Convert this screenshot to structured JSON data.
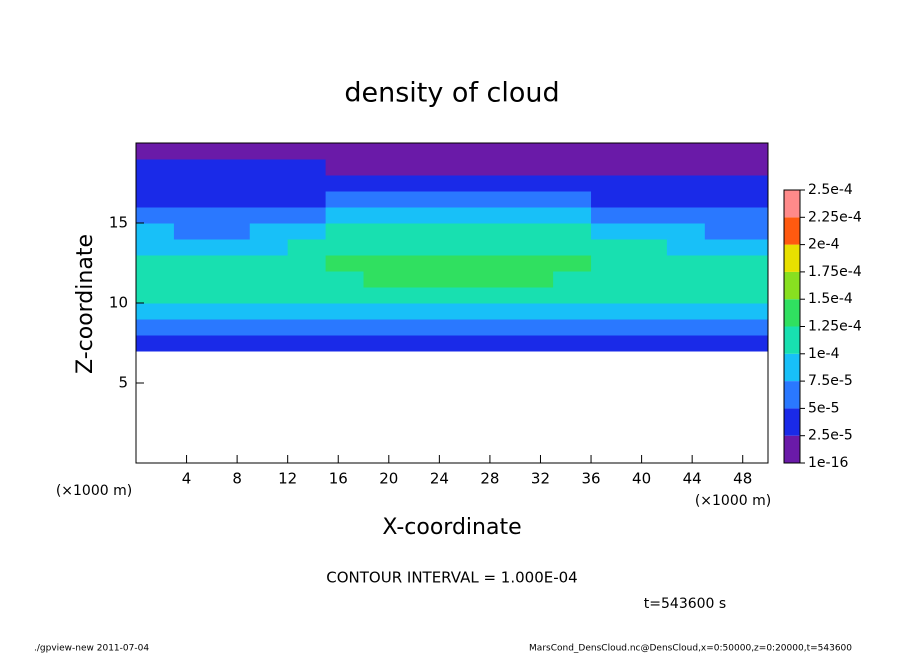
{
  "chart_data": {
    "type": "heatmap",
    "title": "density of cloud",
    "xlabel": "X-coordinate",
    "ylabel": "Z-coordinate",
    "x_unit": "(×1000 m)",
    "annotations": [
      "CONTOUR INTERVAL = 1.000E-04",
      "t=543600 s"
    ],
    "footer_left": "./gpview-new  2011-07-04",
    "footer_right": "MarsCond_DensCloud.nc@DensCloud,x=0:50000,z=0:20000,t=543600",
    "xlim": [
      0,
      50
    ],
    "ylim": [
      0,
      20
    ],
    "xticks": [
      4,
      8,
      12,
      16,
      20,
      24,
      28,
      32,
      36,
      40,
      44,
      48
    ],
    "yticks": [
      5,
      10,
      15
    ],
    "x": [
      1.5,
      4.5,
      7.5,
      10.5,
      13.5,
      16.5,
      19.5,
      22.5,
      25.5,
      28.5,
      31.5,
      34.5,
      37.5,
      40.5,
      43.5,
      46.5,
      49.5
    ],
    "y": [
      7.5,
      8.5,
      9.5,
      10.5,
      11.5,
      12.5,
      13.5,
      14.5,
      15.5,
      16.5,
      17.5,
      18.5,
      19.5
    ],
    "values": [
      [
        3.5e-05,
        3.5e-05,
        3.5e-05,
        3.5e-05,
        3.5e-05,
        3.5e-05,
        3.5e-05,
        3.5e-05,
        3.5e-05,
        3.5e-05,
        3.5e-05,
        3.5e-05,
        3.5e-05,
        3.5e-05,
        3.5e-05,
        3.5e-05,
        3.5e-05
      ],
      [
        6e-05,
        6e-05,
        6e-05,
        6e-05,
        6e-05,
        6e-05,
        6e-05,
        6e-05,
        6e-05,
        6e-05,
        6e-05,
        6e-05,
        6e-05,
        6e-05,
        6e-05,
        6e-05,
        6e-05
      ],
      [
        8e-05,
        8e-05,
        8e-05,
        8e-05,
        8e-05,
        8e-05,
        8e-05,
        8e-05,
        8e-05,
        8e-05,
        8e-05,
        8e-05,
        8e-05,
        8e-05,
        8e-05,
        8e-05,
        8e-05
      ],
      [
        0.0001,
        0.0001,
        0.0001,
        0.0001,
        0.000105,
        0.00011,
        0.00011,
        0.00011,
        0.00011,
        0.00011,
        0.00011,
        0.000105,
        0.000105,
        0.000105,
        0.0001,
        0.0001,
        0.0001
      ],
      [
        0.000105,
        0.000105,
        0.000105,
        0.00011,
        0.000115,
        0.00012,
        0.000125,
        0.000125,
        0.000125,
        0.000125,
        0.000125,
        0.00012,
        0.00012,
        0.000115,
        0.000115,
        0.00011,
        0.00011
      ],
      [
        0.000105,
        0.0001,
        0.0001,
        0.000105,
        0.000115,
        0.000125,
        0.00013,
        0.00013,
        0.00013,
        0.00013,
        0.000125,
        0.000125,
        0.00012,
        0.000115,
        0.00011,
        0.00011,
        0.000105
      ],
      [
        9.5e-05,
        9e-05,
        8.5e-05,
        9.5e-05,
        0.000105,
        0.00012,
        0.00012,
        0.00012,
        0.00012,
        0.00012,
        0.00012,
        0.000115,
        0.00011,
        0.0001,
        9.5e-05,
        9e-05,
        9e-05
      ],
      [
        7.5e-05,
        7e-05,
        7e-05,
        8e-05,
        9e-05,
        0.000105,
        0.00011,
        0.00011,
        0.00011,
        0.00011,
        0.000105,
        0.0001,
        9e-05,
        8e-05,
        7.5e-05,
        7e-05,
        7e-05
      ],
      [
        6e-05,
        5.5e-05,
        5e-05,
        5.5e-05,
        6.5e-05,
        8e-05,
        8.5e-05,
        8.5e-05,
        8.5e-05,
        8.5e-05,
        8e-05,
        7.5e-05,
        7e-05,
        6e-05,
        5.5e-05,
        5.5e-05,
        5.5e-05
      ],
      [
        4e-05,
        4e-05,
        4e-05,
        4e-05,
        4.5e-05,
        5.5e-05,
        5.5e-05,
        5.5e-05,
        5.5e-05,
        5.5e-05,
        5e-05,
        5e-05,
        4.5e-05,
        4e-05,
        4e-05,
        4e-05,
        4e-05
      ],
      [
        3.5e-05,
        3.5e-05,
        3.5e-05,
        3.5e-05,
        3e-05,
        3e-05,
        3e-05,
        3e-05,
        3e-05,
        3e-05,
        3e-05,
        3e-05,
        3e-05,
        2.5e-05,
        2.5e-05,
        2.5e-05,
        2.5e-05
      ],
      [
        3e-05,
        3e-05,
        3e-05,
        2.5e-05,
        2.5e-05,
        2e-05,
        2e-05,
        2e-05,
        2e-05,
        1.5e-05,
        1.5e-05,
        2e-05,
        2e-05,
        2e-05,
        2e-05,
        2e-05,
        2e-05
      ],
      [
        2e-05,
        2e-05,
        2e-05,
        2e-05,
        1.5e-05,
        1e-05,
        1e-05,
        1e-05,
        1e-05,
        1e-05,
        1e-05,
        1e-05,
        1e-05,
        1e-05,
        1e-05,
        1e-05,
        1e-05
      ]
    ],
    "colorbar": {
      "ticks": [
        1e-16,
        {
          "value": 2.5e-05,
          "label": "2.5e-5"
        },
        {
          "value": 5e-05,
          "label": "5e-5"
        },
        {
          "value": 7.5e-05,
          "label": "7.5e-5"
        },
        {
          "value": 0.0001,
          "label": "1e-4"
        },
        {
          "value": 0.000125,
          "label": "1.25e-4"
        },
        {
          "value": 0.00015,
          "label": "1.5e-4"
        },
        {
          "value": 0.000175,
          "label": "1.75e-4"
        },
        {
          "value": 0.0002,
          "label": "2e-4"
        },
        {
          "value": 0.000225,
          "label": "2.25e-4"
        },
        {
          "value": 0.00025,
          "label": "2.5e-4"
        }
      ],
      "colors": [
        "#6a1aa8",
        "#1a2ae8",
        "#2a78ff",
        "#18c0f8",
        "#18e0b0",
        "#30e060",
        "#88e020",
        "#e8e000",
        "#ff5a10",
        "#ff8a8a"
      ]
    }
  }
}
